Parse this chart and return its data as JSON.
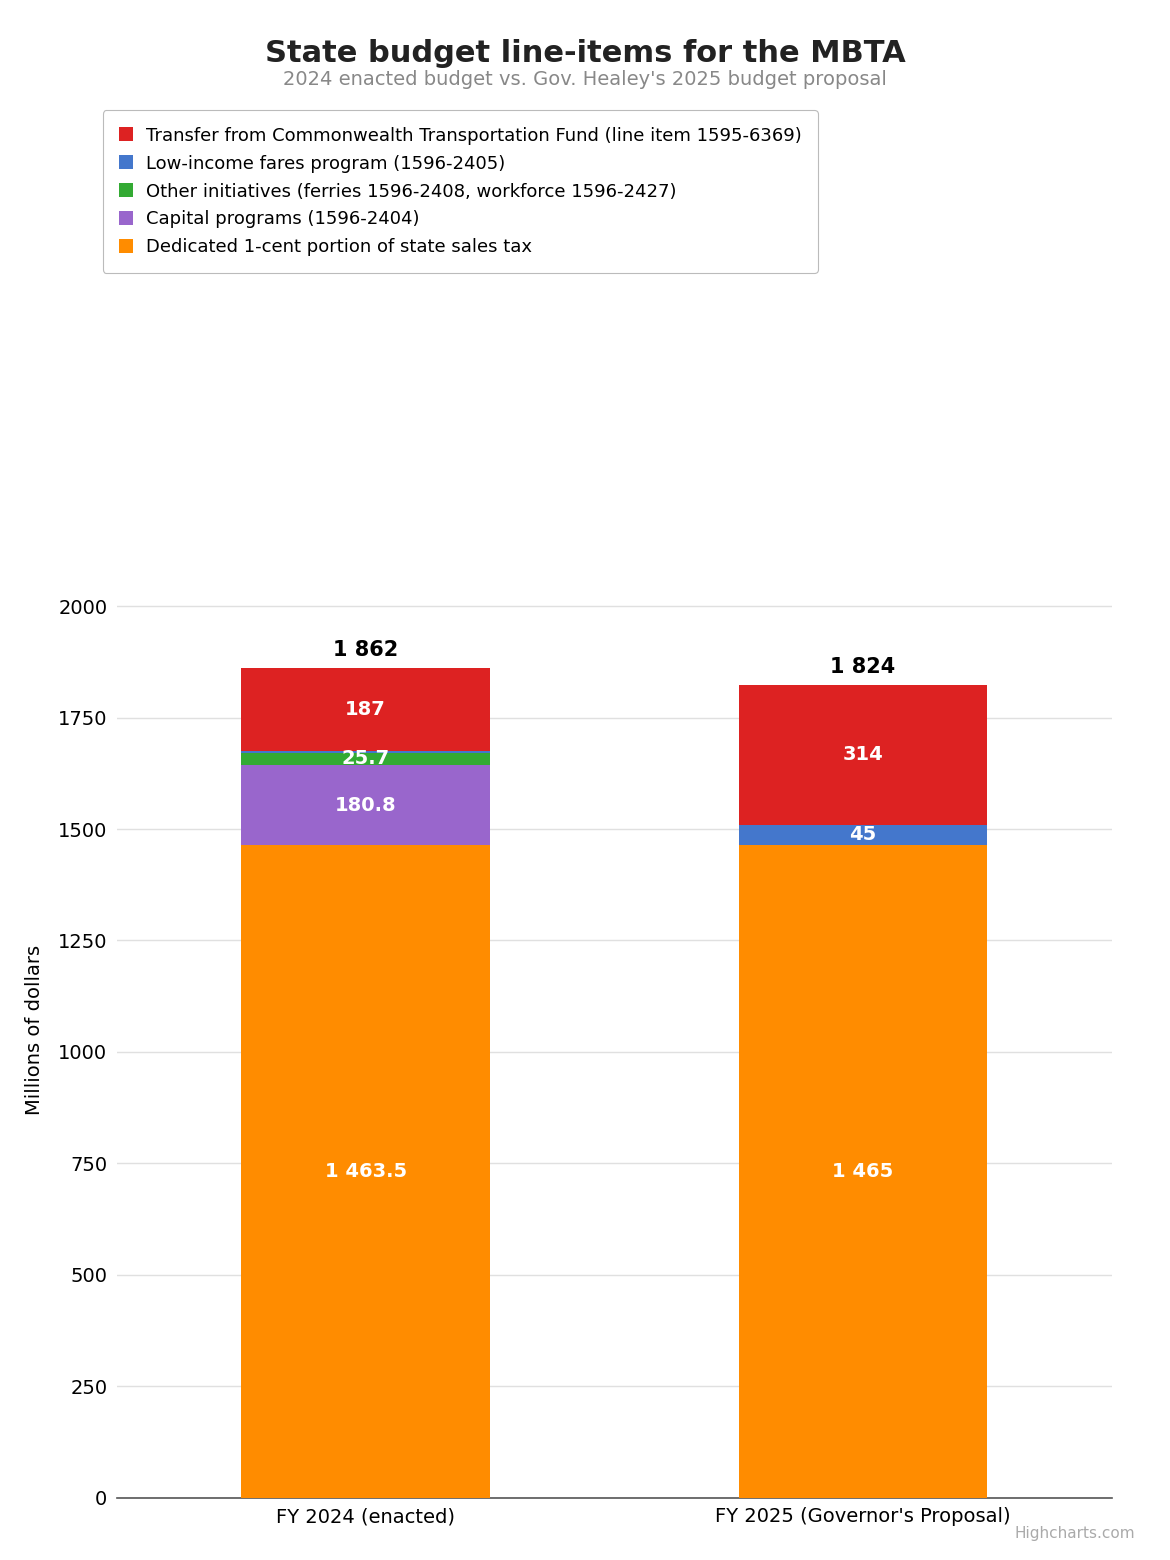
{
  "title": "State budget line-items for the MBTA",
  "subtitle": "2024 enacted budget vs. Gov. Healey's 2025 budget proposal",
  "ylabel": "Millions of dollars",
  "categories": [
    "FY 2024 (enacted)",
    "FY 2025 (Governor's Proposal)"
  ],
  "series": [
    {
      "name": "Dedicated 1-cent portion of state sales tax",
      "color": "#FF8C00",
      "values": [
        1463.5,
        1465.0
      ],
      "labels": [
        "1 463.5",
        "1 465"
      ]
    },
    {
      "name": "Capital programs (1596-2404)",
      "color": "#9966CC",
      "values": [
        180.8,
        0.0
      ],
      "labels": [
        "180.8",
        ""
      ]
    },
    {
      "name": "Other initiatives (ferries 1596-2408, workforce 1596-2427)",
      "color": "#33AA33",
      "values": [
        25.7,
        0.0
      ],
      "labels": [
        "25.7",
        ""
      ]
    },
    {
      "name": "Low-income fares program (1596-2405)",
      "color": "#4477CC",
      "values": [
        5.0,
        45.0
      ],
      "labels": [
        "",
        "45"
      ]
    },
    {
      "name": "Transfer from Commonwealth Transportation Fund (line item 1595-6369)",
      "color": "#DD2222",
      "values": [
        187.0,
        314.0
      ],
      "labels": [
        "187",
        "314"
      ]
    }
  ],
  "legend_order": [
    4,
    3,
    2,
    1,
    0
  ],
  "totals": [
    "1 862",
    "1 824"
  ],
  "ylim": [
    0,
    2100
  ],
  "yticks": [
    0,
    250,
    500,
    750,
    1000,
    1250,
    1500,
    1750,
    2000
  ],
  "background_color": "#ffffff",
  "grid_color": "#e0e0e0",
  "bar_width": 0.5,
  "title_fontsize": 22,
  "subtitle_fontsize": 14,
  "tick_fontsize": 14,
  "legend_fontsize": 13,
  "total_fontsize": 15,
  "bar_label_fontsize": 14,
  "source_text": "Highcharts.com"
}
